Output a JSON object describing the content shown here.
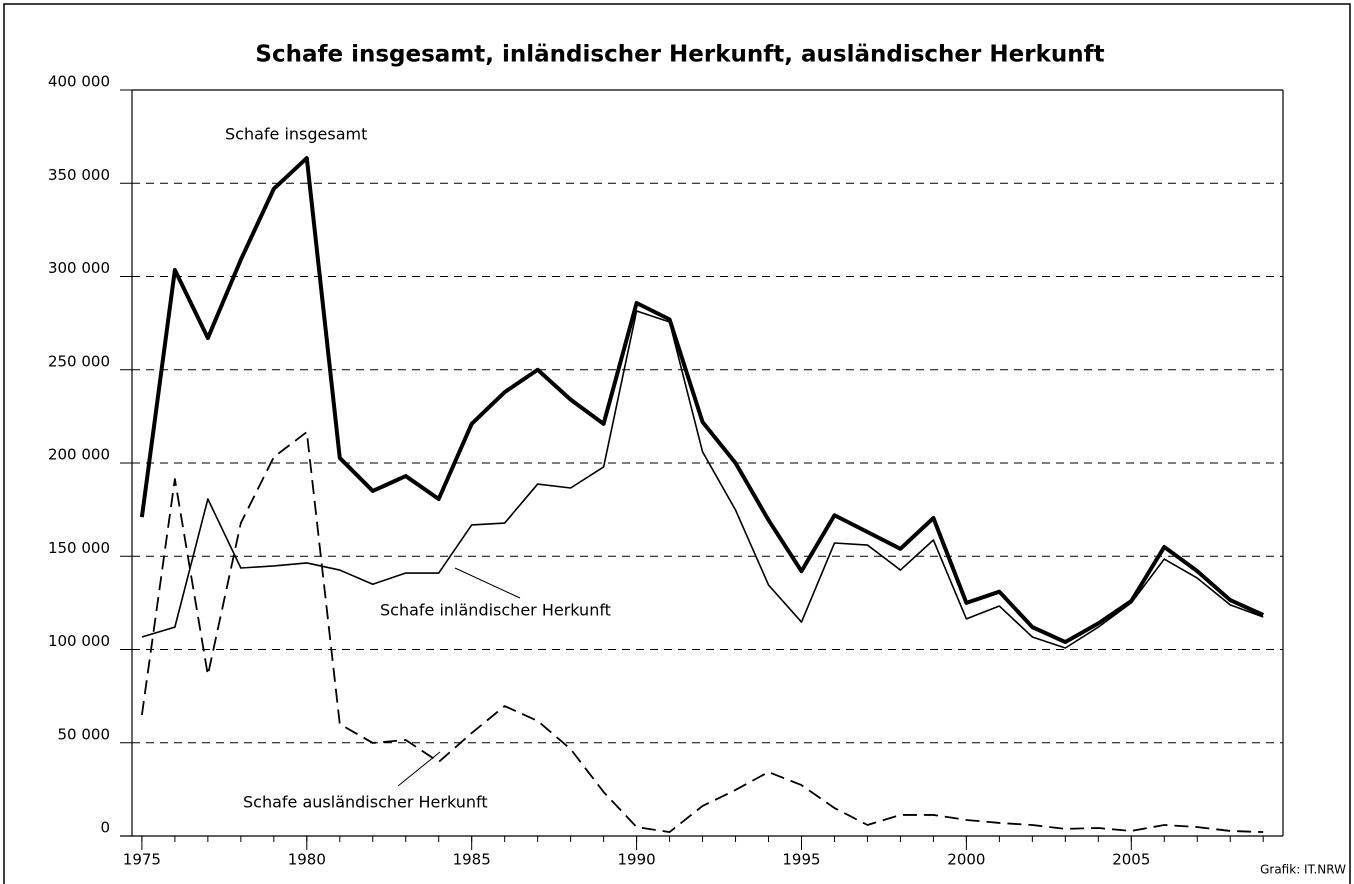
{
  "chart_data": {
    "type": "line",
    "title": "Schafe insgesamt, inländischer Herkunft, ausländischer Herkunft",
    "source": "Grafik: IT.NRW",
    "x": [
      1975,
      1976,
      1977,
      1978,
      1979,
      1980,
      1981,
      1982,
      1983,
      1984,
      1985,
      1986,
      1987,
      1988,
      1989,
      1990,
      1991,
      1992,
      1993,
      1994,
      1995,
      1996,
      1997,
      1998,
      1999,
      2000,
      2001,
      2002,
      2003,
      2004,
      2005,
      2006,
      2007,
      2008,
      2009
    ],
    "xlim": [
      1974.7,
      2009.6
    ],
    "xticks": [
      1975,
      1980,
      1985,
      1990,
      1995,
      2000,
      2005
    ],
    "ylim": [
      0,
      400000
    ],
    "yticks": [
      0,
      {
        "value": 50000,
        "label": "50 000"
      },
      {
        "value": 100000,
        "label": "100 000"
      },
      {
        "value": 150000,
        "label": "150 000"
      },
      {
        "value": 200000,
        "label": "200 000"
      },
      {
        "value": 250000,
        "label": "250 000"
      },
      {
        "value": 300000,
        "label": "300 000"
      },
      {
        "value": 350000,
        "label": "350 000"
      },
      {
        "value": 400000,
        "label": "400 000"
      }
    ],
    "grid": true,
    "series": [
      {
        "name": "Schafe insgesamt",
        "color": "#000000",
        "linewidth": 4,
        "linestyle": "solid",
        "values": [
          171000,
          303500,
          267000,
          309000,
          347000,
          363500,
          202700,
          185000,
          193000,
          180700,
          221000,
          238000,
          250000,
          234000,
          221000,
          285800,
          277000,
          222000,
          200000,
          169400,
          142000,
          172000,
          163000,
          154000,
          170500,
          125000,
          131000,
          112000,
          104000,
          114000,
          126000,
          155000,
          142000,
          126500,
          118500
        ]
      },
      {
        "name": "Schafe inländischer Herkunft",
        "color": "#000000",
        "linewidth": 1.6,
        "linestyle": "solid",
        "values": [
          106700,
          112000,
          180700,
          143700,
          144800,
          146400,
          142600,
          135000,
          141000,
          141000,
          166800,
          167800,
          188700,
          186600,
          197900,
          281500,
          275600,
          206000,
          174800,
          134600,
          114700,
          157100,
          156000,
          142600,
          158700,
          116400,
          123300,
          106700,
          100800,
          112000,
          125000,
          148500,
          138300,
          123900,
          117400
        ]
      },
      {
        "name": "Schafe ausländischer Herkunft",
        "color": "#000000",
        "linewidth": 1.8,
        "linestyle": "dashed",
        "values": [
          64900,
          191400,
          86300,
          167800,
          203200,
          216600,
          60000,
          49900,
          51500,
          39700,
          55200,
          69700,
          61700,
          46600,
          23600,
          4800,
          2100,
          16100,
          24700,
          34300,
          27300,
          15000,
          5900,
          11300,
          11300,
          8600,
          7000,
          5900,
          3800,
          4300,
          2700,
          5900,
          4800,
          2700,
          2100
        ]
      }
    ]
  }
}
